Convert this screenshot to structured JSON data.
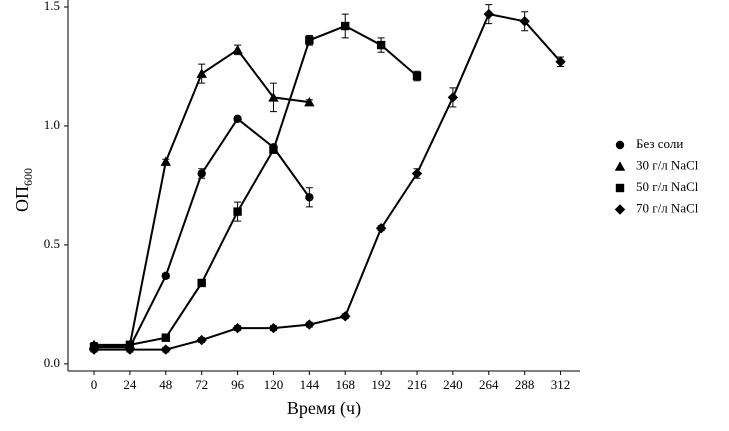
{
  "chart_data": {
    "type": "line",
    "x_label": "Время (ч)",
    "y_label": "ОП",
    "y_label_sub": "600",
    "x": [
      0,
      24,
      48,
      72,
      96,
      120,
      144,
      168,
      192,
      216,
      240,
      264,
      288,
      312
    ],
    "xlim": [
      -17.4,
      325
    ],
    "xticks": [
      0,
      24,
      48,
      72,
      96,
      120,
      144,
      168,
      192,
      216,
      240,
      264,
      288,
      312
    ],
    "ylim": [
      -0.03,
      1.5
    ],
    "yticks": [
      {
        "value": 0,
        "label": "0.0"
      },
      {
        "value": 0.5,
        "label": "0.5"
      },
      {
        "value": 1,
        "label": "1.0"
      },
      1.5
    ],
    "legend": "right",
    "series": [
      {
        "name": "Без соли",
        "color": "#000000",
        "marker": "circle",
        "values": [
          0.07,
          0.07,
          0.37,
          0.8,
          1.03,
          0.91,
          0.7,
          null,
          null,
          null,
          null,
          null,
          null,
          null
        ],
        "errors": [
          0.01,
          0.01,
          0.01,
          0.02,
          0.01,
          0.01,
          0.04,
          null,
          null,
          null,
          null,
          null,
          null,
          null
        ]
      },
      {
        "name": "30 г/л NaCl",
        "color": "#000000",
        "marker": "triangle",
        "values": [
          0.08,
          0.08,
          0.85,
          1.22,
          1.32,
          1.12,
          1.1,
          null,
          null,
          null,
          null,
          null,
          null,
          null
        ],
        "errors": [
          0.01,
          0.01,
          0.01,
          0.04,
          0.02,
          0.06,
          0.01,
          null,
          null,
          null,
          null,
          null,
          null,
          null
        ]
      },
      {
        "name": "50 г/л NaCl",
        "color": "#000000",
        "marker": "square",
        "values": [
          0.07,
          0.08,
          0.11,
          0.34,
          0.64,
          0.9,
          1.36,
          1.42,
          1.34,
          1.21,
          null,
          null,
          null,
          null
        ],
        "errors": [
          0.01,
          0.01,
          0.01,
          0.01,
          0.04,
          0.01,
          0.02,
          0.05,
          0.03,
          0.02,
          null,
          null,
          null,
          null
        ]
      },
      {
        "name": "70 г/л NaCl",
        "color": "#000000",
        "marker": "diamond",
        "values": [
          0.06,
          0.06,
          0.06,
          0.1,
          0.15,
          0.15,
          0.165,
          0.2,
          0.57,
          0.8,
          1.12,
          1.47,
          1.44,
          1.27
        ],
        "errors": [
          0.01,
          0.01,
          0.01,
          0.01,
          0.01,
          0.01,
          0.01,
          0.01,
          0.01,
          0.02,
          0.04,
          0.04,
          0.04,
          0.02
        ]
      }
    ]
  }
}
